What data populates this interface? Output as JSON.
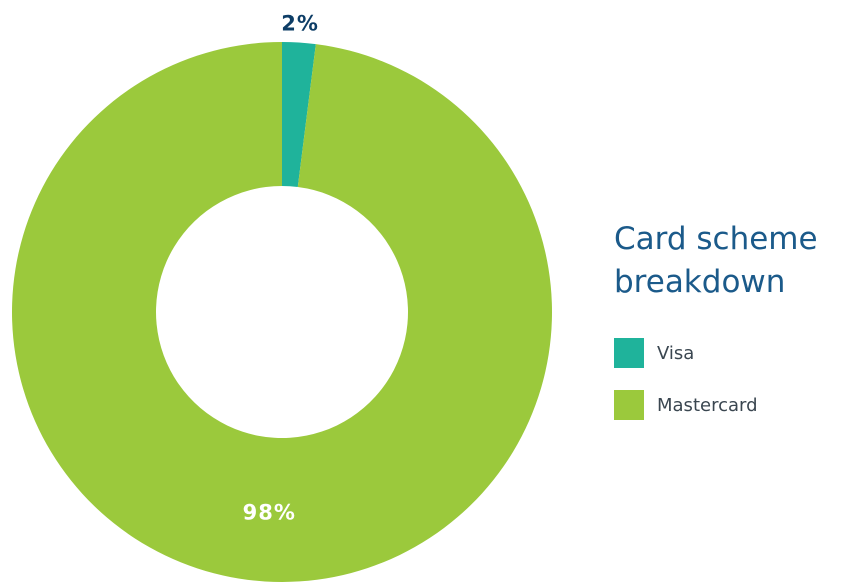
{
  "chart_data": {
    "type": "donut",
    "title": "Card scheme breakdown",
    "categories": [
      "Visa",
      "Mastercard"
    ],
    "values": [
      2,
      98
    ],
    "value_labels": [
      "2%",
      "98%"
    ],
    "colors": [
      "#1fb39b",
      "#9bc93c"
    ]
  }
}
